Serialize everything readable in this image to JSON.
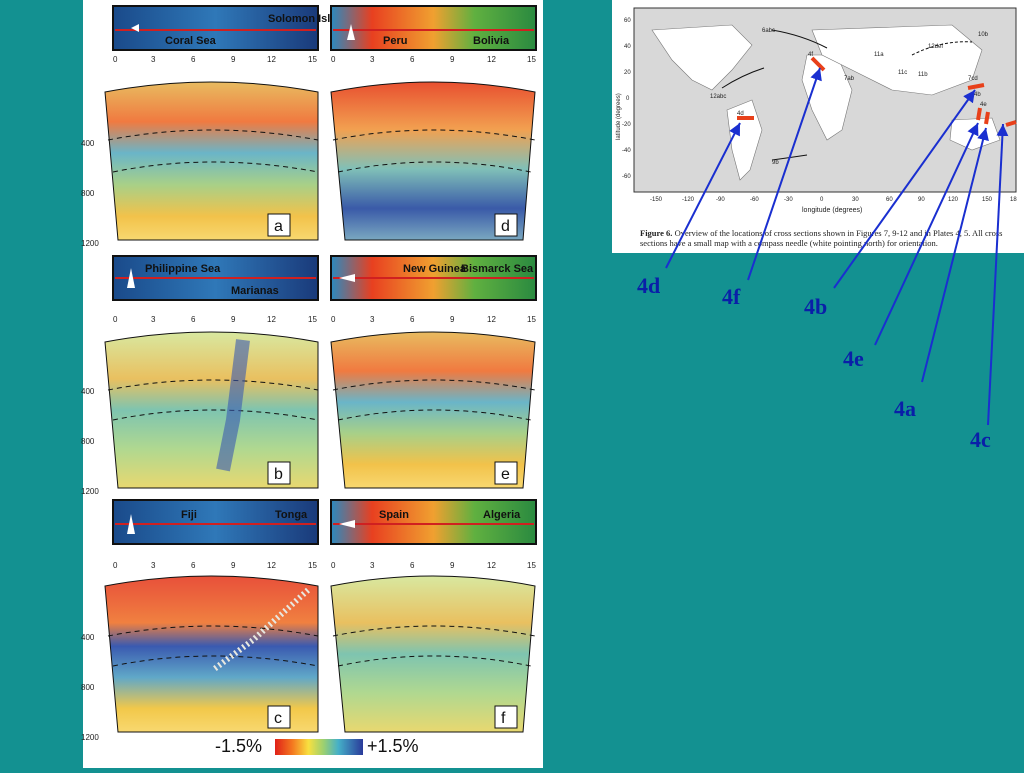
{
  "panels": [
    {
      "id": "a",
      "map_labels": [
        "Solomon Islands",
        "Coral Sea"
      ],
      "ticks": [
        "0",
        "3",
        "6",
        "9",
        "12",
        "15"
      ],
      "depth_ticks": [
        "400",
        "800",
        "1200"
      ]
    },
    {
      "id": "d",
      "map_labels": [
        "Peru",
        "Bolivia"
      ],
      "ticks": [
        "0",
        "3",
        "6",
        "9",
        "12",
        "15"
      ]
    },
    {
      "id": "b",
      "map_labels": [
        "Philippine Sea",
        "Marianas"
      ],
      "ticks": [
        "0",
        "3",
        "6",
        "9",
        "12",
        "15"
      ],
      "depth_ticks": [
        "400",
        "800",
        "1200"
      ]
    },
    {
      "id": "e",
      "map_labels": [
        "New Guinea",
        "Bismarck Sea"
      ],
      "ticks": [
        "0",
        "3",
        "6",
        "9",
        "12",
        "15"
      ]
    },
    {
      "id": "c",
      "map_labels": [
        "Fiji",
        "Tonga"
      ],
      "ticks": [
        "0",
        "3",
        "6",
        "9",
        "12",
        "15"
      ],
      "depth_ticks": [
        "400",
        "800",
        "1200"
      ]
    },
    {
      "id": "f",
      "map_labels": [
        "Spain",
        "Algeria"
      ],
      "ticks": [
        "0",
        "3",
        "6",
        "9",
        "12",
        "15"
      ]
    }
  ],
  "colorbar": {
    "min_label": "-1.5%",
    "max_label": "+1.5%"
  },
  "world_map": {
    "caption_title": "Figure 6.",
    "caption_text": "Overview of the locations of cross sections shown in Figures 7, 9-12 and in Plates 4, 5. All cross sections have a small map with a compass needle (white pointing north) for orientation.",
    "xlabel": "longitude (degrees)",
    "ylabel": "latitude (degrees)",
    "lon_ticks": [
      "-150",
      "-120",
      "-90",
      "-60",
      "-30",
      "0",
      "30",
      "60",
      "90",
      "120",
      "150",
      "18"
    ],
    "lat_ticks": [
      "60",
      "40",
      "20",
      "0",
      "-20",
      "-40",
      "-60"
    ],
    "section_labels": [
      "6abc",
      "4f",
      "7ab",
      "11a",
      "11c",
      "11b",
      "12def",
      "10b",
      "7cd",
      "4b",
      "4e",
      "12abc",
      "4d",
      "9b"
    ]
  },
  "callouts": [
    "4d",
    "4f",
    "4b",
    "4e",
    "4a",
    "4c"
  ],
  "colors": {
    "background": "#139191",
    "arrow": "#1a2fd0",
    "section_red": "#e8401a"
  }
}
